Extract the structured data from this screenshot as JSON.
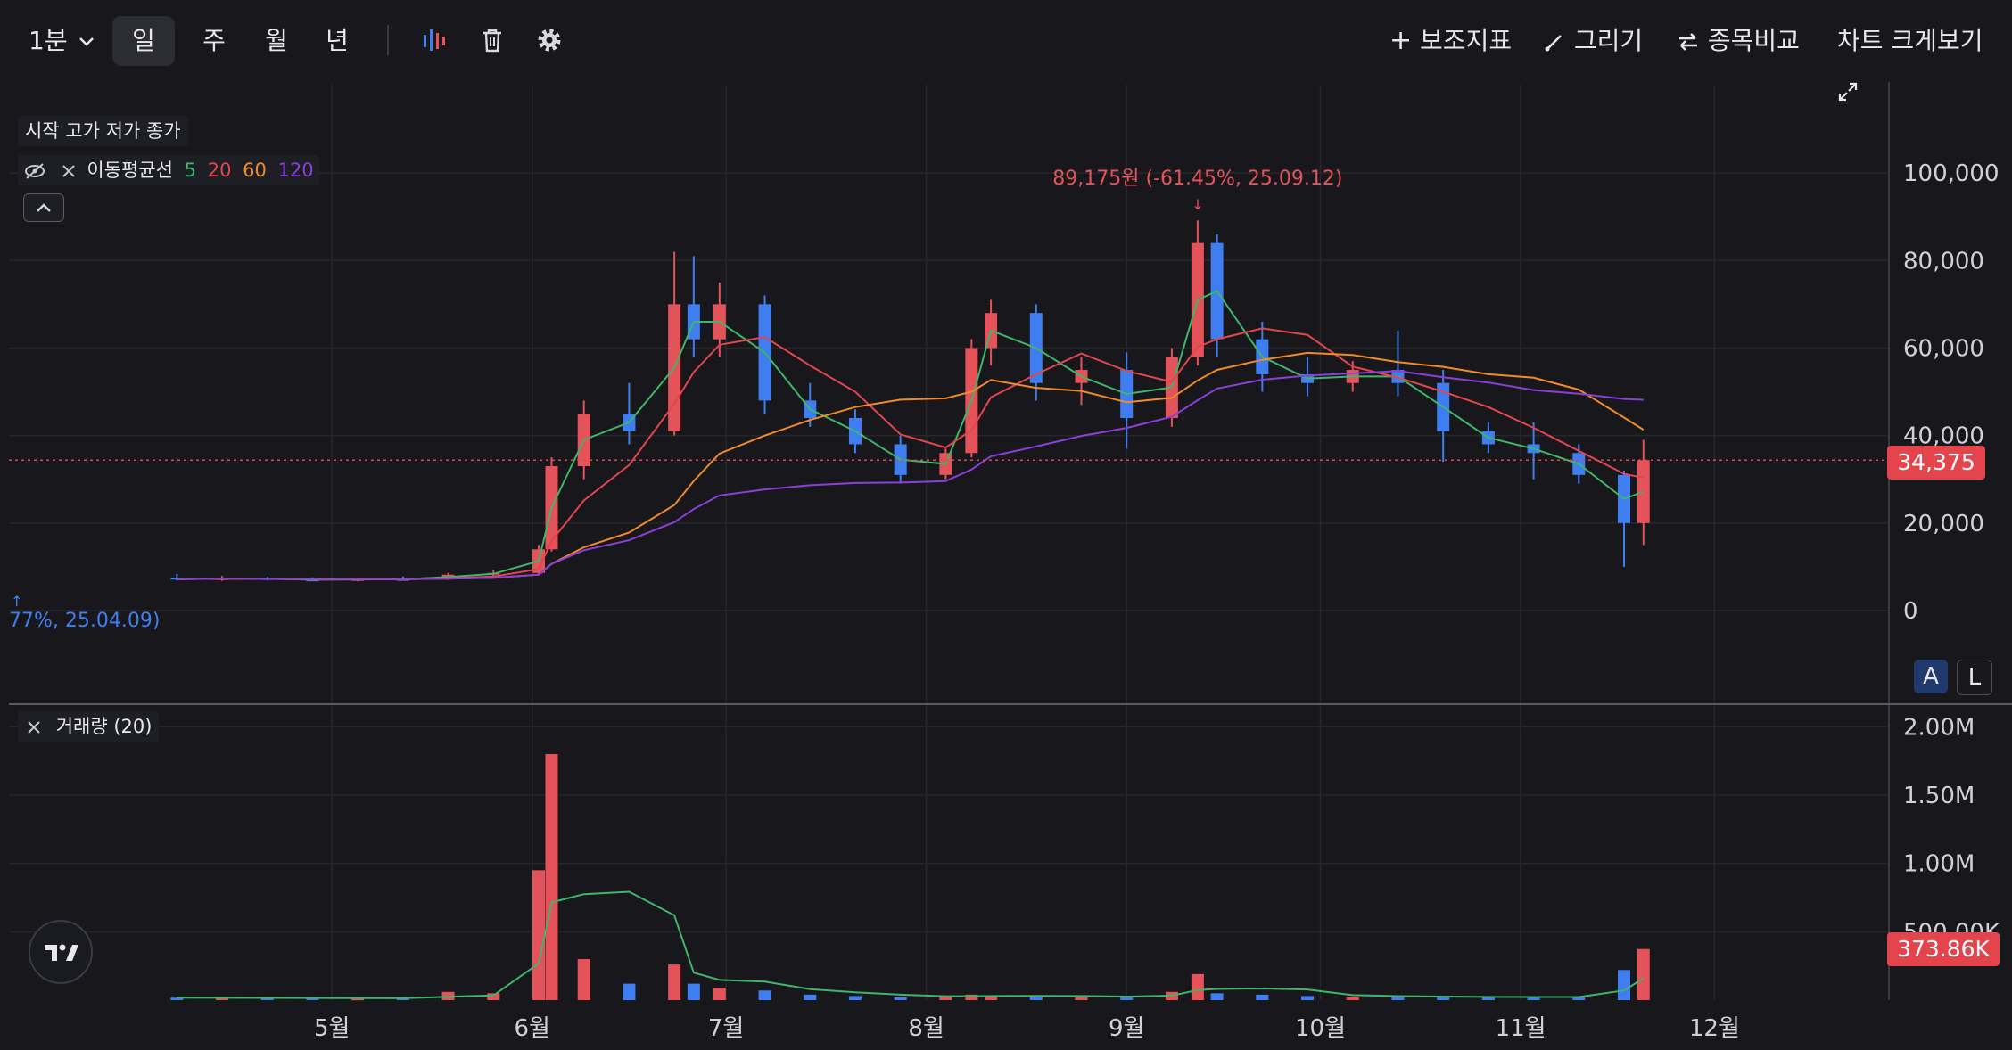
{
  "toolbar": {
    "interval": "1분",
    "periods": [
      "일",
      "주",
      "월",
      "년"
    ],
    "selected_period": "일",
    "indicators_label": "보조지표",
    "draw_label": "그리기",
    "compare_label": "종목비교",
    "fullscreen_label": "차트 크게보기",
    "icons": [
      "candle-type-icon",
      "trash-icon",
      "gear-icon"
    ]
  },
  "legend": {
    "ohlc_label": "시작 고가 저가 종가",
    "ma_label": "이동평균선",
    "ma_periods": [
      "5",
      "20",
      "60",
      "120"
    ]
  },
  "volume_legend": {
    "label": "거래량 (20)"
  },
  "price_badge": "34,375",
  "volume_badge": "373.86K",
  "high_annotation": "89,175원 (-61.45%, 25.09.12)",
  "low_annotation": "77%, 25.04.09)",
  "scale_buttons": [
    "A",
    "L"
  ],
  "colors": {
    "background": "#18181c",
    "up": "#e4525a",
    "down": "#3f7ef0",
    "ma5": "#3eb56a",
    "ma20": "#e4444c",
    "ma60": "#f08a2a",
    "ma120": "#8b3fd9",
    "grid": "#26272d",
    "axis_text": "#d0d0d6"
  },
  "chart_data": {
    "type": "candlestick",
    "x_labels": [
      "5월",
      "6월",
      "7월",
      "8월",
      "9월",
      "10월",
      "11월",
      "12월"
    ],
    "price_axis": {
      "ticks": [
        "0",
        "20,000",
        "40,000",
        "60,000",
        "80,000",
        "100,000"
      ],
      "ylim": [
        0,
        110000
      ]
    },
    "volume_axis": {
      "ticks": [
        "500.00K",
        "1.00M",
        "1.50M",
        "2.00M"
      ],
      "ylim": [
        0,
        2100000
      ]
    },
    "current_price": 34375,
    "current_volume": 373860,
    "annotations": [
      {
        "text": "89,175원 (-61.45%, 25.09.12)",
        "date": "2025-09-12",
        "value": 89175
      },
      {
        "text": "77%, 25.04.09)",
        "date": "2025-04-09"
      }
    ],
    "candles": [
      {
        "date": "2025-04-07",
        "o": 7500,
        "h": 8400,
        "l": 6900,
        "c": 7200,
        "v": 18000
      },
      {
        "date": "2025-04-14",
        "o": 7200,
        "h": 7900,
        "l": 6800,
        "c": 7400,
        "v": 16000
      },
      {
        "date": "2025-04-21",
        "o": 7400,
        "h": 7700,
        "l": 6900,
        "c": 7100,
        "v": 15000
      },
      {
        "date": "2025-04-28",
        "o": 7100,
        "h": 7600,
        "l": 6800,
        "c": 7000,
        "v": 14000
      },
      {
        "date": "2025-05-05",
        "o": 7000,
        "h": 7400,
        "l": 6700,
        "c": 7200,
        "v": 12000
      },
      {
        "date": "2025-05-12",
        "o": 7200,
        "h": 7800,
        "l": 6900,
        "c": 7100,
        "v": 13000
      },
      {
        "date": "2025-05-19",
        "o": 7100,
        "h": 8600,
        "l": 7000,
        "c": 8200,
        "v": 60000
      },
      {
        "date": "2025-05-26",
        "o": 8200,
        "h": 9300,
        "l": 7800,
        "c": 8600,
        "v": 50000
      },
      {
        "date": "2025-06-02",
        "o": 8600,
        "h": 15000,
        "l": 8400,
        "c": 14000,
        "v": 950000
      },
      {
        "date": "2025-06-04",
        "o": 14000,
        "h": 35000,
        "l": 13500,
        "c": 33000,
        "v": 1800000
      },
      {
        "date": "2025-06-09",
        "o": 33000,
        "h": 48000,
        "l": 30000,
        "c": 45000,
        "v": 300000
      },
      {
        "date": "2025-06-16",
        "o": 45000,
        "h": 52000,
        "l": 38000,
        "c": 41000,
        "v": 120000
      },
      {
        "date": "2025-06-23",
        "o": 41000,
        "h": 82000,
        "l": 40000,
        "c": 70000,
        "v": 260000
      },
      {
        "date": "2025-06-26",
        "o": 70000,
        "h": 81000,
        "l": 58000,
        "c": 62000,
        "v": 120000
      },
      {
        "date": "2025-06-30",
        "o": 62000,
        "h": 75000,
        "l": 58000,
        "c": 70000,
        "v": 90000
      },
      {
        "date": "2025-07-07",
        "o": 70000,
        "h": 72000,
        "l": 45000,
        "c": 48000,
        "v": 70000
      },
      {
        "date": "2025-07-14",
        "o": 48000,
        "h": 52000,
        "l": 42000,
        "c": 44000,
        "v": 40000
      },
      {
        "date": "2025-07-21",
        "o": 44000,
        "h": 46000,
        "l": 36000,
        "c": 38000,
        "v": 30000
      },
      {
        "date": "2025-07-28",
        "o": 38000,
        "h": 40000,
        "l": 29000,
        "c": 31000,
        "v": 20000
      },
      {
        "date": "2025-08-04",
        "o": 31000,
        "h": 37000,
        "l": 30000,
        "c": 36000,
        "v": 25000
      },
      {
        "date": "2025-08-08",
        "o": 36000,
        "h": 62000,
        "l": 35000,
        "c": 60000,
        "v": 40000
      },
      {
        "date": "2025-08-11",
        "o": 60000,
        "h": 71000,
        "l": 56000,
        "c": 68000,
        "v": 35000
      },
      {
        "date": "2025-08-18",
        "o": 68000,
        "h": 70000,
        "l": 48000,
        "c": 52000,
        "v": 25000
      },
      {
        "date": "2025-08-25",
        "o": 52000,
        "h": 58000,
        "l": 47000,
        "c": 55000,
        "v": 20000
      },
      {
        "date": "2025-09-01",
        "o": 55000,
        "h": 59000,
        "l": 37000,
        "c": 44000,
        "v": 25000
      },
      {
        "date": "2025-09-08",
        "o": 44000,
        "h": 60000,
        "l": 42000,
        "c": 58000,
        "v": 60000
      },
      {
        "date": "2025-09-12",
        "o": 58000,
        "h": 89175,
        "l": 56000,
        "c": 84000,
        "v": 190000
      },
      {
        "date": "2025-09-15",
        "o": 84000,
        "h": 86000,
        "l": 58000,
        "c": 62000,
        "v": 50000
      },
      {
        "date": "2025-09-22",
        "o": 62000,
        "h": 66000,
        "l": 50000,
        "c": 54000,
        "v": 40000
      },
      {
        "date": "2025-09-29",
        "o": 54000,
        "h": 58000,
        "l": 49000,
        "c": 52000,
        "v": 30000
      },
      {
        "date": "2025-10-06",
        "o": 52000,
        "h": 57000,
        "l": 50000,
        "c": 55000,
        "v": 25000
      },
      {
        "date": "2025-10-13",
        "o": 55000,
        "h": 64000,
        "l": 49000,
        "c": 52000,
        "v": 22000
      },
      {
        "date": "2025-10-20",
        "o": 52000,
        "h": 55000,
        "l": 34000,
        "c": 41000,
        "v": 28000
      },
      {
        "date": "2025-10-27",
        "o": 41000,
        "h": 43000,
        "l": 36000,
        "c": 38000,
        "v": 20000
      },
      {
        "date": "2025-11-03",
        "o": 38000,
        "h": 43000,
        "l": 30000,
        "c": 36000,
        "v": 22000
      },
      {
        "date": "2025-11-10",
        "o": 36000,
        "h": 38000,
        "l": 29000,
        "c": 31000,
        "v": 20000
      },
      {
        "date": "2025-11-17",
        "o": 31000,
        "h": 32000,
        "l": 10000,
        "c": 20000,
        "v": 220000
      },
      {
        "date": "2025-11-20",
        "o": 20000,
        "h": 39000,
        "l": 15000,
        "c": 34375,
        "v": 373860
      }
    ]
  }
}
